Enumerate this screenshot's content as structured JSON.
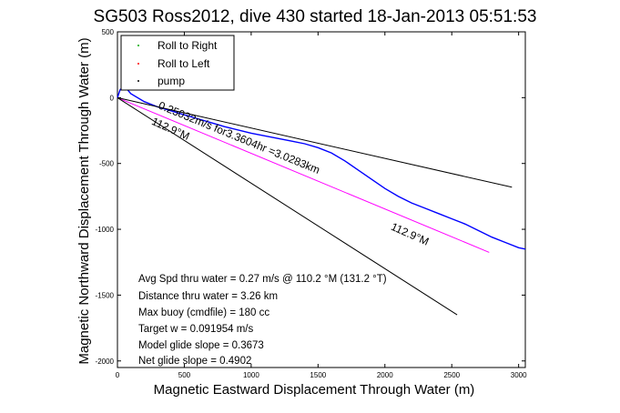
{
  "chart_data": {
    "type": "line",
    "title": "SG503 Ross2012, dive 430 started 18-Jan-2013 05:51:53",
    "xlabel": "Magnetic Eastward Displacement Through Water (m)",
    "ylabel": "Magnetic Northward Displacement Through Water (m)",
    "xlim": [
      0,
      3050
    ],
    "ylim": [
      -2050,
      500
    ],
    "xticks": [
      0,
      500,
      1000,
      1500,
      2000,
      2500,
      3000
    ],
    "yticks": [
      500,
      0,
      -500,
      -1000,
      -1500,
      -2000
    ],
    "grid": false,
    "legend": {
      "placement": "top-left",
      "entries": [
        {
          "label": "Roll to Right",
          "color": "#00aa00",
          "marker": "dot"
        },
        {
          "label": "Roll to Left",
          "color": "#ff0000",
          "marker": "dot"
        },
        {
          "label": "pump",
          "color": "#000000",
          "marker": "dot"
        }
      ]
    },
    "series": [
      {
        "color": "#0000ff",
        "style": "line",
        "x": [
          0,
          20,
          50,
          100,
          200,
          300,
          400,
          500,
          600,
          700,
          800,
          900,
          1000,
          1100,
          1200,
          1300,
          1400,
          1500,
          1600,
          1700,
          1800,
          1900,
          2000,
          2100,
          2200,
          2300,
          2400,
          2500,
          2600,
          2700,
          2800,
          2900,
          3000,
          3050
        ],
        "y": [
          0,
          60,
          90,
          30,
          -30,
          -70,
          -100,
          -130,
          -160,
          -190,
          -220,
          -245,
          -270,
          -290,
          -310,
          -330,
          -350,
          -380,
          -420,
          -480,
          -550,
          -620,
          -690,
          -750,
          -800,
          -840,
          -880,
          -920,
          -960,
          -1010,
          -1060,
          -1100,
          -1140,
          -1150
        ]
      },
      {
        "color": "#ff00ff",
        "style": "line",
        "x": [
          0,
          2780
        ],
        "y": [
          0,
          -1175
        ]
      },
      {
        "color": "#000000",
        "style": "line",
        "x": [
          0,
          2950
        ],
        "y": [
          0,
          -680
        ]
      },
      {
        "color": "#000000",
        "style": "line",
        "x": [
          0,
          2540
        ],
        "y": [
          0,
          -1650
        ]
      }
    ],
    "annotations": [
      {
        "text": "0.25032m/s for3.3604hr =3.0283km",
        "x": 300,
        "y": -80,
        "angle": 22.3
      },
      {
        "text": "112.9°M",
        "x": 250,
        "y": -200,
        "angle": 24
      },
      {
        "text": "112.9°M",
        "x": 2040,
        "y": -1000,
        "angle": 24
      }
    ],
    "stats": [
      "Avg Spd thru water =  0.27 m/s @ 110.2   °M (131.2 °T)",
      "Distance thru water =  3.26 km",
      "Max buoy (cmdfile) = 180 cc",
      "Target w = 0.091954 m/s",
      "Model glide slope = 0.3673",
      "Net glide slope = 0.4902"
    ]
  }
}
